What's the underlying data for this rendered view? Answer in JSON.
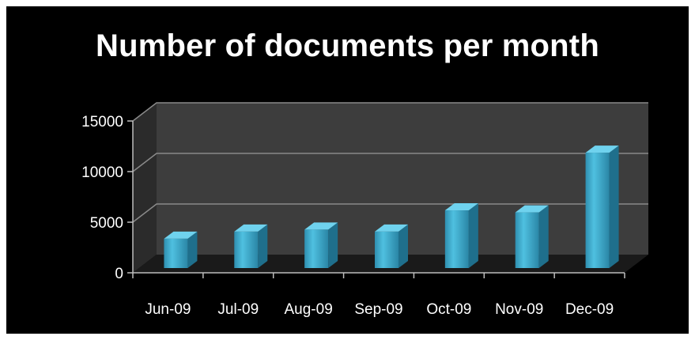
{
  "chart_data": {
    "type": "bar",
    "title": "Number of documents per month",
    "categories": [
      "Jun-09",
      "Jul-09",
      "Aug-09",
      "Sep-09",
      "Oct-09",
      "Nov-09",
      "Dec-09"
    ],
    "values": [
      2900,
      3600,
      3800,
      3600,
      5700,
      5500,
      11400
    ],
    "ylim": [
      0,
      15000
    ],
    "yticks": [
      0,
      5000,
      10000,
      15000
    ],
    "grid": true,
    "three_d": true,
    "bar_color": "#3aa6c9",
    "background_color": "#000000",
    "wall_color": "#3d3d3d"
  }
}
